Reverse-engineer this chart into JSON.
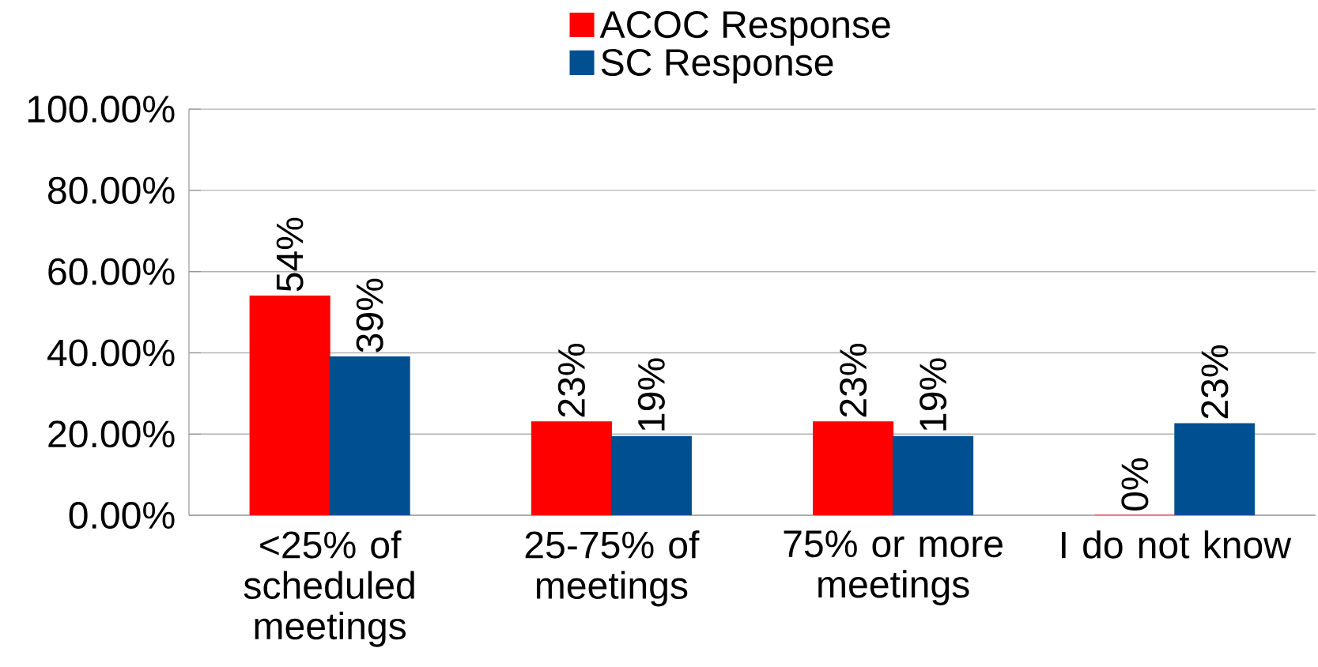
{
  "chart_data": {
    "type": "bar",
    "categories": [
      "<25% of scheduled meetings",
      "25-75% of meetings",
      "75% or more meetings",
      "I do not know"
    ],
    "series": [
      {
        "name": "ACOC Response",
        "color": "#ff0000",
        "values": [
          54,
          23,
          23,
          0
        ],
        "value_labels": [
          "54%",
          "23%",
          "23%",
          "0%"
        ]
      },
      {
        "name": "SC Response",
        "color": "#004f91",
        "values": [
          39,
          19.4,
          19.4,
          22.6
        ],
        "value_labels": [
          "39%",
          "19%",
          "19%",
          "23%"
        ]
      }
    ],
    "ylim": [
      0,
      100
    ],
    "yticks": [
      {
        "value": 0,
        "label": "0.00%"
      },
      {
        "value": 20,
        "label": "20.00%"
      },
      {
        "value": 40,
        "label": "40.00%"
      },
      {
        "value": 60,
        "label": "60.00%"
      },
      {
        "value": 80,
        "label": "80.00%"
      },
      {
        "value": 100,
        "label": "100.00%"
      }
    ],
    "grid": "y",
    "legend": "top"
  }
}
